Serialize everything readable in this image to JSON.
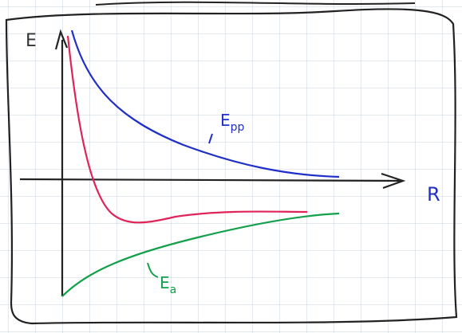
{
  "axes": {
    "y_label": "E",
    "x_label": "R"
  },
  "curves": [
    {
      "label": {
        "text": "E",
        "subscript": "pp"
      }
    },
    {
      "label": {
        "text": "E",
        "subscript": "a"
      }
    }
  ]
}
